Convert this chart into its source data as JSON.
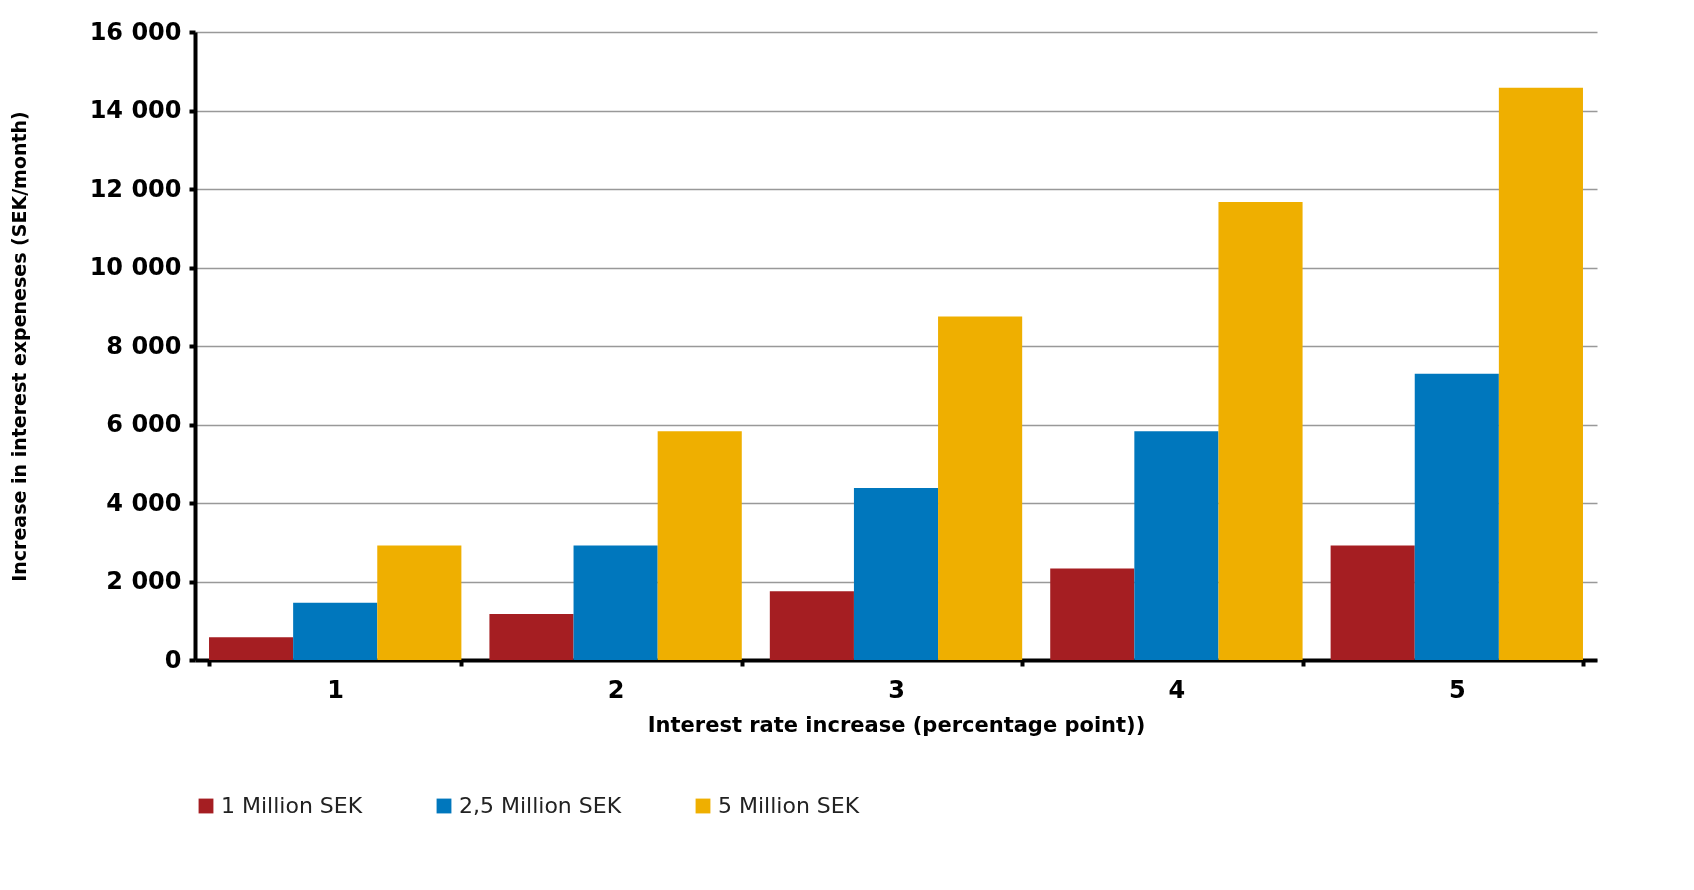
{
  "chart_data": {
    "type": "bar",
    "xlabel": "Interest rate increase (percentage point))",
    "ylabel": "Increase in interest expeneses (SEK/month)",
    "categories": [
      "1",
      "2",
      "3",
      "4",
      "5"
    ],
    "series": [
      {
        "name": "1 Million SEK",
        "color": "#a51e22",
        "values": [
          580,
          1170,
          1750,
          2330,
          2920
        ]
      },
      {
        "name": "2,5 Million SEK",
        "color": "#0077bd",
        "values": [
          1460,
          2920,
          4380,
          5830,
          7290
        ]
      },
      {
        "name": "5 Million SEK",
        "color": "#efaf00",
        "values": [
          2920,
          5830,
          8750,
          11670,
          14580
        ]
      }
    ],
    "ylim": [
      0,
      16000
    ],
    "yticks": [
      0,
      {
        "value": 2000,
        "label": "2 000"
      },
      {
        "value": 4000,
        "label": "4 000"
      },
      {
        "value": 6000,
        "label": "6 000"
      },
      {
        "value": 8000,
        "label": "8 000"
      },
      {
        "value": 10000,
        "label": "10 000"
      },
      {
        "value": 12000,
        "label": "12 000"
      },
      {
        "value": 14000,
        "label": "14 000"
      },
      {
        "value": 16000,
        "label": "16 000"
      }
    ],
    "grid": "y",
    "legend": "bottom"
  }
}
